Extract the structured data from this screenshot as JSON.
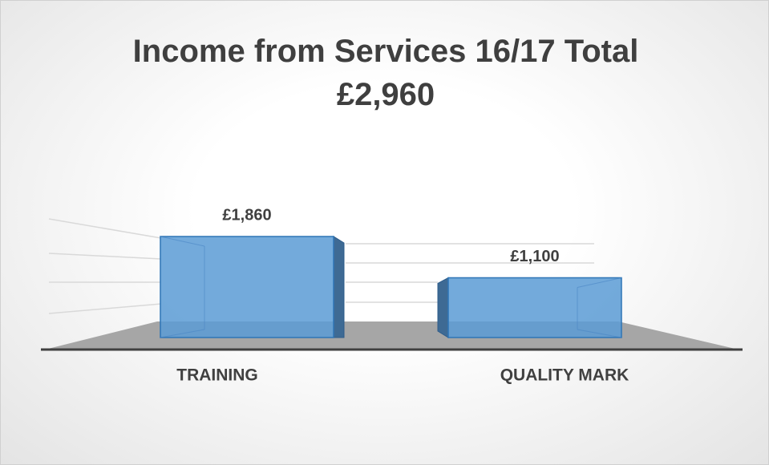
{
  "chart_data": {
    "type": "bar3d",
    "title": "Income from Services 16/17 Total £2,960",
    "categories": [
      "TRAINING",
      "QUALITY MARK"
    ],
    "values": [
      1860,
      1100
    ],
    "value_labels": [
      "£1,860",
      "£1,100"
    ],
    "color": "#5b9bd5",
    "ylim": [
      0,
      2000
    ]
  }
}
